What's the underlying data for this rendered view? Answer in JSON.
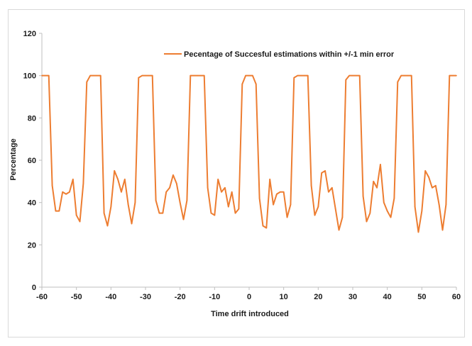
{
  "chart_data": {
    "type": "line",
    "title": "",
    "xlabel": "Time drift introduced",
    "ylabel": "Percentage",
    "xlim": [
      -60,
      60
    ],
    "ylim": [
      0,
      120
    ],
    "x_ticks": [
      -60,
      -50,
      -40,
      -30,
      -20,
      -10,
      0,
      10,
      20,
      30,
      40,
      50,
      60
    ],
    "y_ticks": [
      0,
      20,
      40,
      60,
      80,
      100,
      120
    ],
    "grid": false,
    "legend_position": "top",
    "series": [
      {
        "name": "Pecentage of Succesful estimations within +/-1 min error",
        "color": "#ED7D31",
        "x": [
          -60,
          -59,
          -58,
          -57,
          -56,
          -55,
          -54,
          -53,
          -52,
          -51,
          -50,
          -49,
          -48,
          -47,
          -46,
          -45,
          -44,
          -43,
          -42,
          -41,
          -40,
          -39,
          -38,
          -37,
          -36,
          -35,
          -34,
          -33,
          -32,
          -31,
          -30,
          -29,
          -28,
          -27,
          -26,
          -25,
          -24,
          -23,
          -22,
          -21,
          -20,
          -19,
          -18,
          -17,
          -16,
          -15,
          -14,
          -13,
          -12,
          -11,
          -10,
          -9,
          -8,
          -7,
          -6,
          -5,
          -4,
          -3,
          -2,
          -1,
          0,
          1,
          2,
          3,
          4,
          5,
          6,
          7,
          8,
          9,
          10,
          11,
          12,
          13,
          14,
          15,
          16,
          17,
          18,
          19,
          20,
          21,
          22,
          23,
          24,
          25,
          26,
          27,
          28,
          29,
          30,
          31,
          32,
          33,
          34,
          35,
          36,
          37,
          38,
          39,
          40,
          41,
          42,
          43,
          44,
          45,
          46,
          47,
          48,
          49,
          50,
          51,
          52,
          53,
          54,
          55,
          56,
          57,
          58,
          59,
          60
        ],
        "y": [
          100,
          100,
          100,
          48,
          36,
          36,
          45,
          44,
          45,
          51,
          34,
          31,
          49,
          97,
          100,
          100,
          100,
          100,
          35,
          29,
          38,
          55,
          51,
          45,
          51,
          39,
          30,
          40,
          99,
          100,
          100,
          100,
          100,
          41,
          35,
          35,
          45,
          47,
          53,
          49,
          40,
          32,
          41,
          100,
          100,
          100,
          100,
          100,
          47,
          35,
          34,
          51,
          45,
          47,
          38,
          45,
          35,
          37,
          96,
          100,
          100,
          100,
          96,
          42,
          29,
          28,
          51,
          39,
          44,
          45,
          45,
          33,
          39,
          99,
          100,
          100,
          100,
          100,
          48,
          34,
          38,
          54,
          55,
          45,
          47,
          37,
          27,
          33,
          98,
          100,
          100,
          100,
          100,
          43,
          31,
          35,
          50,
          47,
          58,
          40,
          36,
          33,
          42,
          97,
          100,
          100,
          100,
          100,
          38,
          26,
          36,
          55,
          52,
          47,
          48,
          39,
          27,
          39,
          100,
          100,
          100
        ]
      }
    ]
  }
}
